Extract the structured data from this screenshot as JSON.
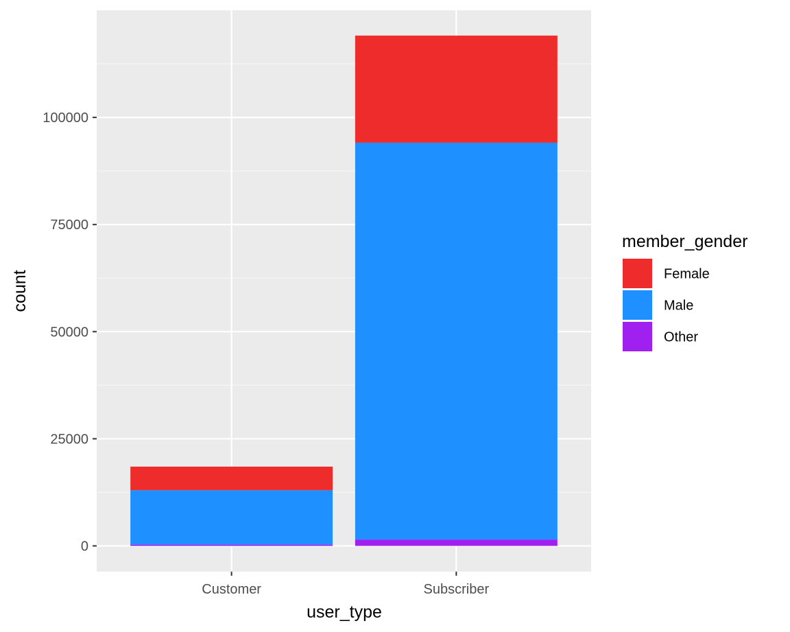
{
  "chart_data": {
    "type": "bar",
    "stacked": true,
    "categories": [
      "Customer",
      "Subscriber"
    ],
    "series": [
      {
        "name": "Female",
        "values": [
          5500,
          25000
        ]
      },
      {
        "name": "Male",
        "values": [
          12700,
          92600
        ]
      },
      {
        "name": "Other",
        "values": [
          300,
          1500
        ]
      }
    ],
    "xlabel": "user_type",
    "ylabel": "count",
    "ylim": [
      -6000,
      125000
    ],
    "yticks": [
      0,
      25000,
      50000,
      75000,
      100000
    ],
    "ytick_labels": [
      "0",
      "25000",
      "50000",
      "75000",
      "100000"
    ],
    "legend": {
      "title": "member_gender",
      "placement": "right",
      "entries": [
        "Female",
        "Male",
        "Other"
      ]
    },
    "grid": true,
    "colors": {
      "Female": "#ee2c2c",
      "Male": "#1e90ff",
      "Other": "#a020f0",
      "panel_background": "#ebebeb",
      "grid_major": "#ffffff",
      "grid_minor": "#f5f5f5"
    }
  }
}
